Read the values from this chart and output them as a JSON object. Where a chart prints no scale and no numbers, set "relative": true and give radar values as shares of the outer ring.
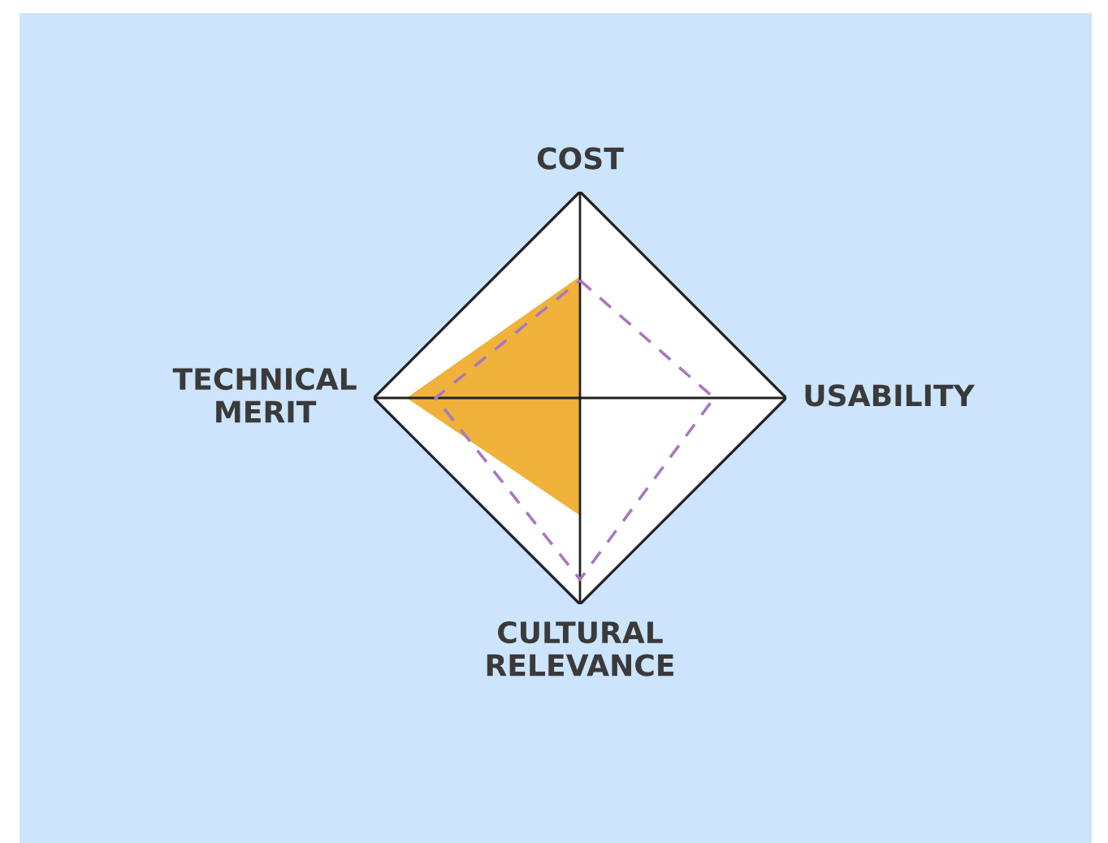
{
  "chart_data": {
    "type": "radar",
    "relative": true,
    "categories": [
      "COST",
      "USABILITY",
      "CULTURAL RELEVANCE",
      "TECHNICAL MERIT"
    ],
    "series": [
      {
        "color": "#f0b23a",
        "values": [
          0.59,
          0,
          0.57,
          0.84
        ]
      },
      {
        "color": "#a878c0",
        "line_style": "dashed",
        "values": [
          0.57,
          0.65,
          0.88,
          0.7
        ]
      }
    ]
  }
}
